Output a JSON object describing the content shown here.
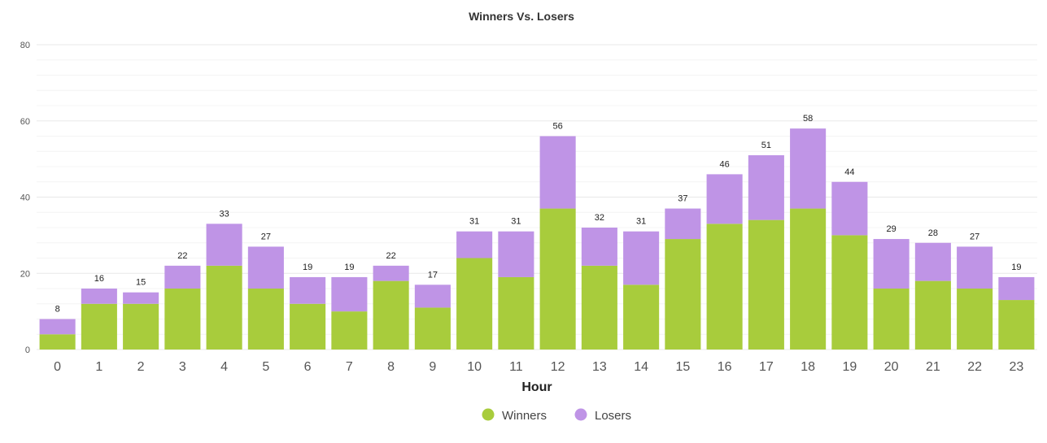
{
  "colors": {
    "winners": "#a8cc3c",
    "losers": "#bf94e6",
    "grid": "#e8e8e8",
    "text": "#333333"
  },
  "chart_data": {
    "type": "bar",
    "stacked": true,
    "title": "Winners Vs. Losers",
    "xlabel": "Hour",
    "ylabel": "",
    "ylim": [
      0,
      80
    ],
    "yticks": [
      0,
      20,
      40,
      60,
      80
    ],
    "grid": true,
    "legend_position": "bottom-center",
    "categories": [
      "0",
      "1",
      "2",
      "3",
      "4",
      "5",
      "6",
      "7",
      "8",
      "9",
      "10",
      "11",
      "12",
      "13",
      "14",
      "15",
      "16",
      "17",
      "18",
      "19",
      "20",
      "21",
      "22",
      "23"
    ],
    "series": [
      {
        "name": "Winners",
        "color": "#a8cc3c",
        "values": [
          4,
          12,
          12,
          16,
          22,
          16,
          12,
          10,
          18,
          11,
          24,
          19,
          37,
          22,
          17,
          29,
          33,
          34,
          37,
          30,
          16,
          18,
          16,
          13
        ]
      },
      {
        "name": "Losers",
        "color": "#bf94e6",
        "values": [
          4,
          4,
          3,
          6,
          11,
          11,
          7,
          9,
          4,
          6,
          7,
          12,
          19,
          10,
          14,
          8,
          13,
          17,
          21,
          14,
          13,
          10,
          11,
          6
        ]
      }
    ],
    "totals": [
      8,
      16,
      15,
      22,
      33,
      27,
      19,
      19,
      22,
      17,
      31,
      31,
      56,
      32,
      31,
      37,
      46,
      51,
      58,
      44,
      29,
      28,
      27,
      19
    ]
  }
}
